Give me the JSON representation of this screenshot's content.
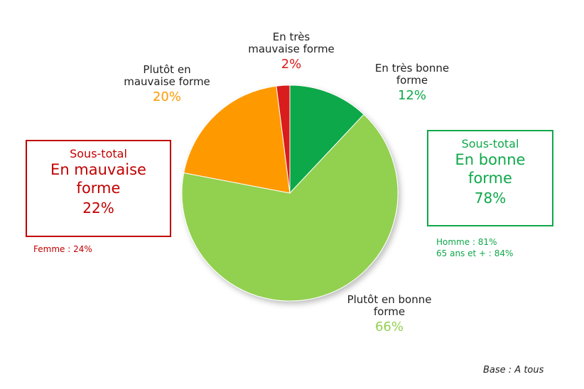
{
  "chart_data": {
    "type": "pie",
    "title": "",
    "slices": [
      {
        "name": "En très bonne forme",
        "pct_label": "12%",
        "value": 12,
        "color": "#0fa84a"
      },
      {
        "name": "Plutôt en bonne forme",
        "pct_label": "66%",
        "value": 66,
        "color": "#92d050"
      },
      {
        "name": "Plutôt en mauvaise forme",
        "pct_label": "20%",
        "value": 20,
        "color": "#ff9900"
      },
      {
        "name": "En très mauvaise forme",
        "pct_label": "2%",
        "value": 2,
        "color": "#d91a1a"
      }
    ],
    "labels": {
      "tres_bonne": {
        "line1": "En très bonne",
        "line2": "forme"
      },
      "plutot_bonne": {
        "line1": "Plutôt en bonne",
        "line2": "forme"
      },
      "plutot_mauvaise": {
        "line1": "Plutôt en",
        "line2": "mauvaise forme"
      },
      "tres_mauvaise": {
        "line1": "En très",
        "line2": "mauvaise forme"
      }
    },
    "subtotals": {
      "bad": {
        "title": "Sous-total",
        "line1": "En mauvaise",
        "line2": "forme",
        "value": "22%",
        "color": "#c00000"
      },
      "good": {
        "title": "Sous-total",
        "line1": "En bonne",
        "line2": "forme",
        "value": "78%",
        "color": "#0fa84a"
      }
    },
    "notes": {
      "bad": [
        "Femme : 24%"
      ],
      "good": [
        "Homme : 81%",
        "65 ans et + : 84%"
      ]
    },
    "base": "Base : A tous"
  }
}
